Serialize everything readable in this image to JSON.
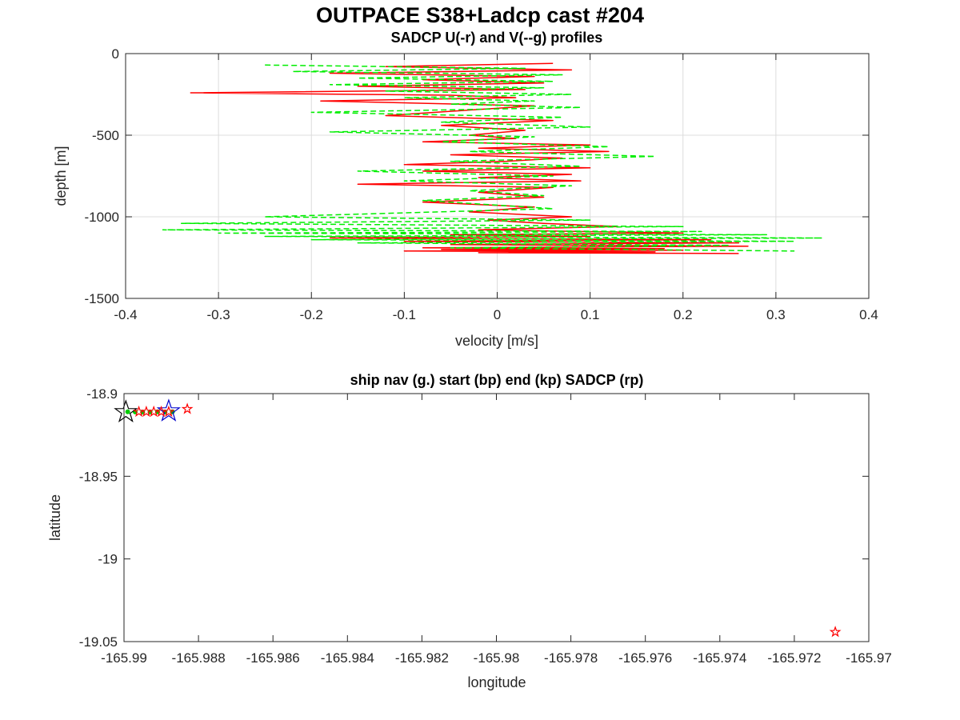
{
  "figure": {
    "title": "OUTPACE S38+Ladcp cast #204"
  },
  "chart_data": [
    {
      "type": "line",
      "title": "SADCP U(-r) and V(--g) profiles",
      "xlabel": "velocity [m/s]",
      "ylabel": "depth [m]",
      "xlim": [
        -0.4,
        0.4
      ],
      "ylim": [
        -1500,
        0
      ],
      "xticks": [
        -0.4,
        -0.3,
        -0.2,
        -0.1,
        0,
        0.1,
        0.2,
        0.3,
        0.4
      ],
      "xtick_labels": [
        "-0.4",
        "-0.3",
        "-0.2",
        "-0.1",
        "0",
        "0.1",
        "0.2",
        "0.3",
        "0.4"
      ],
      "yticks": [
        -1500,
        -1000,
        -500,
        0
      ],
      "ytick_labels": [
        "-1500",
        "-1000",
        "-500",
        "0"
      ],
      "grid": true,
      "series": [
        {
          "color": "#ff0000",
          "style": "solid",
          "x": [
            0.06,
            -0.12,
            0.08,
            -0.18,
            0.04,
            -0.08,
            0.05,
            -0.15,
            0.03,
            -0.33,
            -0.05,
            0.02,
            -0.19,
            0.04,
            -0.04,
            -0.12,
            0.06,
            -0.06,
            0.03,
            -0.03,
            0.02,
            -0.08,
            0.1,
            -0.02,
            0.12,
            -0.05,
            0.07,
            0.01,
            -0.1,
            0.1,
            -0.08,
            0.08,
            -0.02,
            0.09,
            -0.15,
            0.06,
            -0.02,
            0.05,
            -0.08,
            0.04,
            -0.03,
            0.08,
            -0.01,
            0.05,
            0.13,
            -0.02,
            0.2,
            -0.05,
            0.1,
            -0.18,
            0.23,
            -0.1,
            0.26,
            -0.05,
            0.27,
            -0.08,
            0.18,
            -0.06,
            0.2,
            -0.1,
            0.17,
            -0.02,
            0.26
          ],
          "y": [
            -60,
            -80,
            -100,
            -120,
            -140,
            -160,
            -180,
            -200,
            -220,
            -240,
            -255,
            -270,
            -290,
            -320,
            -350,
            -380,
            -410,
            -440,
            -470,
            -500,
            -520,
            -540,
            -560,
            -580,
            -600,
            -620,
            -640,
            -660,
            -680,
            -700,
            -720,
            -740,
            -760,
            -780,
            -800,
            -820,
            -850,
            -880,
            -910,
            -940,
            -970,
            -1000,
            -1020,
            -1040,
            -1060,
            -1080,
            -1100,
            -1110,
            -1120,
            -1130,
            -1140,
            -1150,
            -1160,
            -1170,
            -1180,
            -1190,
            -1195,
            -1200,
            -1205,
            -1210,
            -1215,
            -1220,
            -1225
          ]
        },
        {
          "color": "#00ee00",
          "style": "dashed",
          "x": [
            -0.25,
            0.03,
            -0.22,
            0.07,
            -0.15,
            0.06,
            -0.18,
            0.05,
            -0.12,
            0.08,
            -0.1,
            0.04,
            -0.05,
            0.09,
            -0.2,
            0.07,
            -0.06,
            0.1,
            -0.18,
            0.04,
            -0.06,
            0.12,
            -0.03,
            0.17,
            -0.05,
            0.09,
            -0.15,
            0.06,
            -0.1,
            0.08,
            -0.03,
            0.05,
            -0.08,
            0.06,
            -0.25,
            0.1,
            -0.34,
            0.2,
            -0.36,
            0.22,
            -0.3,
            0.29,
            -0.25,
            0.35,
            -0.2,
            0.32,
            -0.15,
            0.25,
            -0.05,
            0.32
          ],
          "y": [
            -70,
            -90,
            -110,
            -130,
            -150,
            -170,
            -190,
            -210,
            -230,
            -250,
            -270,
            -290,
            -310,
            -330,
            -360,
            -390,
            -420,
            -450,
            -480,
            -510,
            -540,
            -570,
            -600,
            -630,
            -660,
            -690,
            -720,
            -750,
            -780,
            -810,
            -840,
            -870,
            -900,
            -950,
            -1000,
            -1020,
            -1040,
            -1060,
            -1080,
            -1090,
            -1100,
            -1110,
            -1120,
            -1130,
            -1140,
            -1150,
            -1160,
            -1175,
            -1190,
            -1210
          ]
        }
      ]
    },
    {
      "type": "scatter",
      "title": "ship nav (g.) start (bp) end (kp) SADCP (rp)",
      "xlabel": "longitude",
      "ylabel": "latitude",
      "xlim": [
        -165.99,
        -165.97
      ],
      "ylim": [
        -19.05,
        -18.9
      ],
      "xticks": [
        -165.99,
        -165.988,
        -165.986,
        -165.984,
        -165.982,
        -165.98,
        -165.978,
        -165.976,
        -165.974,
        -165.972,
        -165.97
      ],
      "xtick_labels": [
        "-165.99",
        "-165.988",
        "-165.986",
        "-165.984",
        "-165.982",
        "-165.98",
        "-165.978",
        "-165.976",
        "-165.974",
        "-165.972",
        "-165.97"
      ],
      "yticks": [
        -19.05,
        -19,
        -18.95,
        -18.9
      ],
      "ytick_labels": [
        "-19.05",
        "-19",
        "-18.95",
        "-18.9"
      ],
      "grid": false,
      "series": [
        {
          "color": "#00cc00",
          "marker": "dot",
          "x": [
            -165.9899,
            -165.9897,
            -165.9895,
            -165.9893,
            -165.9891,
            -165.9889,
            -165.9887
          ],
          "y": [
            -18.911,
            -18.9111,
            -18.9112,
            -18.9111,
            -18.911,
            -18.9111,
            -18.911
          ]
        },
        {
          "color": "#0000cc",
          "marker": "star",
          "size": "large",
          "x": [
            -165.9888
          ],
          "y": [
            -18.9107
          ]
        },
        {
          "color": "#000000",
          "marker": "star",
          "size": "large",
          "x": [
            -165.98995
          ],
          "y": [
            -18.9112
          ]
        },
        {
          "color": "#ff0000",
          "marker": "star",
          "size": "small",
          "x": [
            -165.9896,
            -165.9894,
            -165.9892,
            -165.989,
            -165.9888,
            -165.9883,
            -165.9709
          ],
          "y": [
            -18.911,
            -18.911,
            -18.911,
            -18.911,
            -18.911,
            -18.9093,
            -19.0442
          ]
        }
      ]
    }
  ]
}
